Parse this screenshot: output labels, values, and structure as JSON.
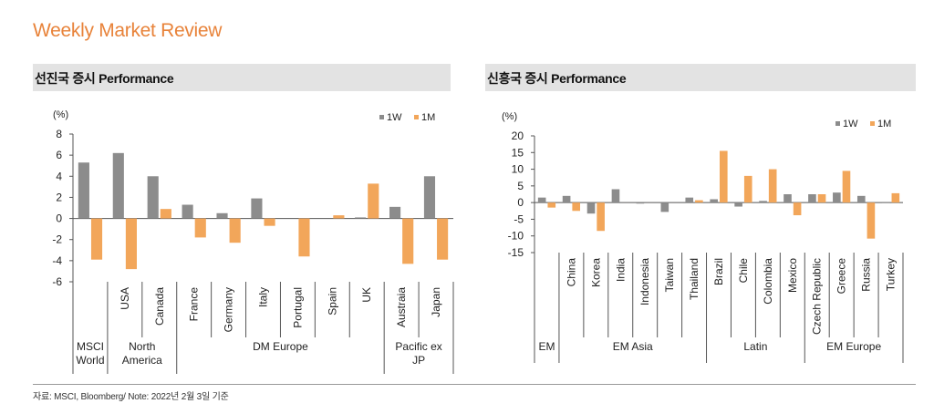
{
  "report_title": "Weekly Market Review",
  "source_note": "자료: MSCI, Bloomberg/ Note: 2022년 2월 3일 기준",
  "colors": {
    "w1": "#8c8c8c",
    "m1": "#f2a65a",
    "title": "#e8833a"
  },
  "chart_data": [
    {
      "type": "bar",
      "title": "선진국 증시 Performance",
      "ylabel": "(%)",
      "ylim": [
        -6,
        8
      ],
      "yticks": [
        8,
        6,
        4,
        2,
        0,
        -2,
        -4,
        -6
      ],
      "legend": [
        "1W",
        "1M"
      ],
      "legend_position": "top-right",
      "categories": [
        "MSCI World",
        "USA",
        "Canada",
        "France",
        "Germany",
        "Italy",
        "Portugal",
        "Spain",
        "UK",
        "Austraia",
        "Japan"
      ],
      "series": [
        {
          "name": "1W",
          "values": [
            5.3,
            6.2,
            4.0,
            1.3,
            0.5,
            1.9,
            0.0,
            0.0,
            0.1,
            1.1,
            4.0
          ]
        },
        {
          "name": "1M",
          "values": [
            -3.9,
            -4.8,
            0.9,
            -1.8,
            -2.3,
            -0.7,
            -3.6,
            0.3,
            3.3,
            -4.3,
            -3.9
          ]
        }
      ],
      "tick_labels": [
        "USA",
        "Canada",
        "France",
        "Germany",
        "Italy",
        "Portugal",
        "Spain",
        "UK",
        "Austraia",
        "Japan"
      ],
      "groups": [
        {
          "label": "MSCI\nWorld"
        },
        {
          "label": "North\nAmerica"
        },
        {
          "label": "DM Europe"
        },
        {
          "label": "Pacific ex\nJP"
        }
      ]
    },
    {
      "type": "bar",
      "title": "신흥국 증시 Performance",
      "ylabel": "(%)",
      "ylim": [
        -15,
        20
      ],
      "yticks": [
        20,
        15,
        10,
        5,
        0,
        -5,
        -10,
        -15
      ],
      "legend": [
        "1W",
        "1M"
      ],
      "legend_position": "top-right",
      "categories": [
        "EM",
        "China",
        "Korea",
        "India",
        "Indonesia",
        "Taiwan",
        "Thailand",
        "Brazil",
        "Chile",
        "Colombia",
        "Mexico",
        "Czech Republic",
        "Greece",
        "Russia",
        "Turkey"
      ],
      "series": [
        {
          "name": "1W",
          "values": [
            1.5,
            2.0,
            -3.3,
            4.0,
            -0.3,
            -2.8,
            1.5,
            1.0,
            -1.2,
            0.5,
            2.5,
            2.5,
            3.0,
            2.0,
            0.2
          ]
        },
        {
          "name": "1M",
          "values": [
            -1.5,
            -2.5,
            -8.5,
            0.0,
            0.0,
            0.0,
            0.7,
            15.5,
            8.0,
            10.0,
            -3.8,
            2.5,
            9.5,
            -10.8,
            2.8
          ]
        }
      ],
      "tick_labels": [
        "China",
        "Korea",
        "India",
        "Indonesia",
        "Taiwan",
        "Thailand",
        "Brazil",
        "Chile",
        "Colombia",
        "Mexico",
        "Czech Republic",
        "Greece",
        "Russia",
        "Turkey"
      ],
      "groups": [
        {
          "label": "EM"
        },
        {
          "label": "EM Asia"
        },
        {
          "label": "Latin"
        },
        {
          "label": "EM Europe"
        }
      ]
    }
  ]
}
